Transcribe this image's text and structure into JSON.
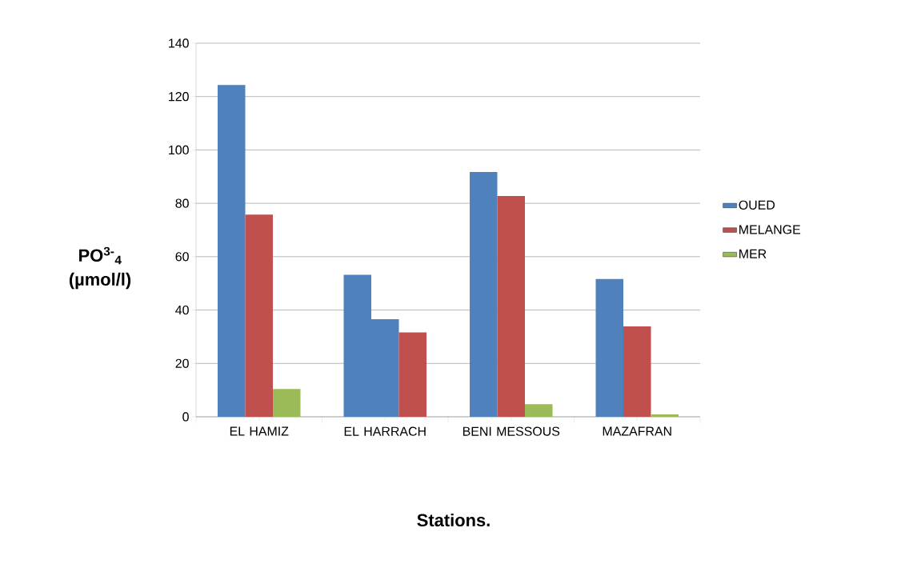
{
  "chart_data": {
    "type": "bar",
    "xlabel": "Stations.",
    "ylabel": "PO$^{3-}$$_{4}$ (µmol/l)",
    "categories": [
      "EL HAMIZ",
      "EL HARRACH",
      "BENI MESSOUS",
      "MAZAFRAN"
    ],
    "series": [
      {
        "name": "OUED",
        "color": "#4f81bd",
        "values": [
          124.3,
          53.2,
          91.7,
          51.6
        ]
      },
      {
        "name": "MELANGE",
        "color": "#c0504d",
        "colors": [
          "#c0504d",
          "#4f81bd",
          "#c0504d",
          "#c0504d"
        ],
        "values": [
          75.8,
          36.6,
          82.7,
          33.9
        ]
      },
      {
        "name": "MER",
        "color": "#9bbb59",
        "colors": [
          "#9bbb59",
          "#c0504d",
          "#9bbb59",
          "#9bbb59"
        ],
        "values": [
          10.4,
          31.6,
          4.7,
          0.9
        ]
      }
    ],
    "ylim": [
      0,
      140
    ],
    "yticks": [
      0,
      20,
      40,
      60,
      80,
      100,
      120,
      140
    ],
    "grid": "y",
    "legend": "right"
  }
}
